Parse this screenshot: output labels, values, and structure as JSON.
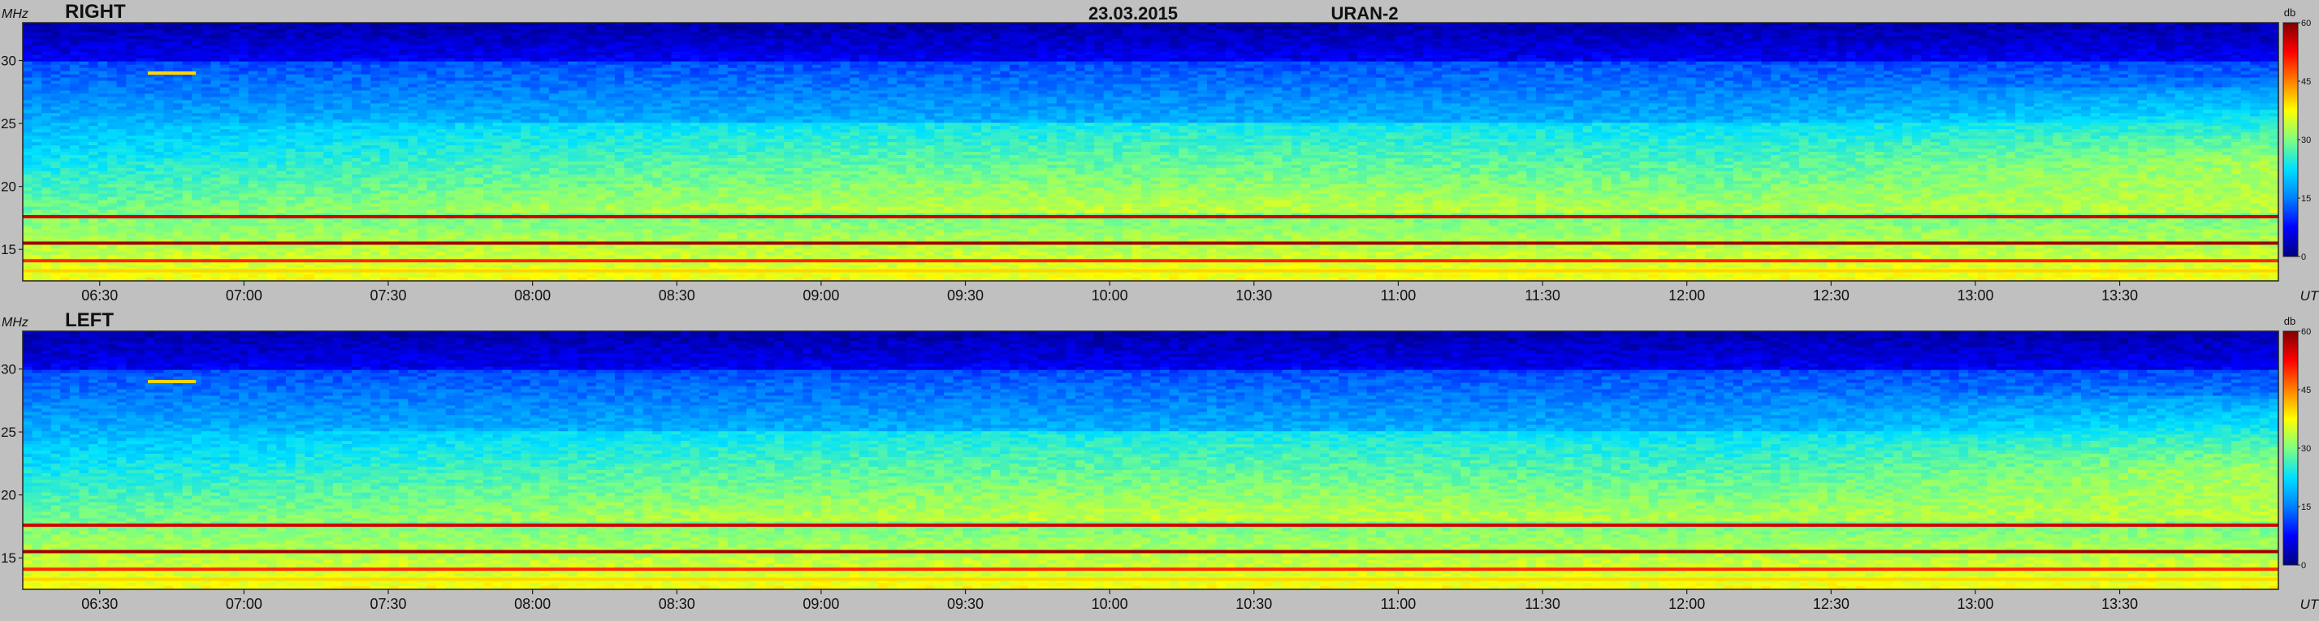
{
  "header": {
    "date": "23.03.2015",
    "instrument": "URAN-2"
  },
  "colors": {
    "background": "#c0c0c0",
    "colormap": [
      "#00007f",
      "#0000ff",
      "#0080ff",
      "#00e0ff",
      "#7fff7f",
      "#ffff00",
      "#ff8000",
      "#ff0000",
      "#7f0000"
    ]
  },
  "chart_data": [
    {
      "type": "heatmap",
      "title": "RIGHT",
      "ylabel": "MHz",
      "xlabel": "UT",
      "ylim": [
        12.5,
        33
      ],
      "xlim": [
        "06:14",
        "14:03"
      ],
      "x_ticks": [
        "06:30",
        "07:00",
        "07:30",
        "08:00",
        "08:30",
        "09:00",
        "09:30",
        "10:00",
        "10:30",
        "11:00",
        "11:30",
        "12:00",
        "12:30",
        "13:00",
        "13:30"
      ],
      "y_ticks": [
        15,
        20,
        25,
        30
      ],
      "colorbar": {
        "label": "db",
        "range": [
          0,
          60
        ],
        "ticks": [
          0,
          15,
          30,
          45,
          60
        ]
      },
      "features": [
        {
          "freq_mhz": 17.6,
          "level_db": 55
        },
        {
          "freq_mhz": 15.5,
          "level_db": 58
        },
        {
          "freq_mhz": 14.1,
          "level_db": 50
        },
        {
          "freq_mhz": 13.3,
          "level_db": 40
        },
        {
          "freq_mhz": 29.0,
          "level_db": 40
        }
      ]
    },
    {
      "type": "heatmap",
      "title": "LEFT",
      "ylabel": "MHz",
      "xlabel": "UT",
      "ylim": [
        12.5,
        33
      ],
      "xlim": [
        "06:14",
        "14:03"
      ],
      "x_ticks": [
        "06:30",
        "07:00",
        "07:30",
        "08:00",
        "08:30",
        "09:00",
        "09:30",
        "10:00",
        "10:30",
        "11:00",
        "11:30",
        "12:00",
        "12:30",
        "13:00",
        "13:30"
      ],
      "y_ticks": [
        15,
        20,
        25,
        30
      ],
      "colorbar": {
        "label": "db",
        "range": [
          0,
          60
        ],
        "ticks": [
          0,
          15,
          30,
          45,
          60
        ]
      },
      "features": [
        {
          "freq_mhz": 17.6,
          "level_db": 55
        },
        {
          "freq_mhz": 15.5,
          "level_db": 58
        },
        {
          "freq_mhz": 14.1,
          "level_db": 50
        },
        {
          "freq_mhz": 13.3,
          "level_db": 40
        },
        {
          "freq_mhz": 29.0,
          "level_db": 40
        }
      ]
    }
  ]
}
